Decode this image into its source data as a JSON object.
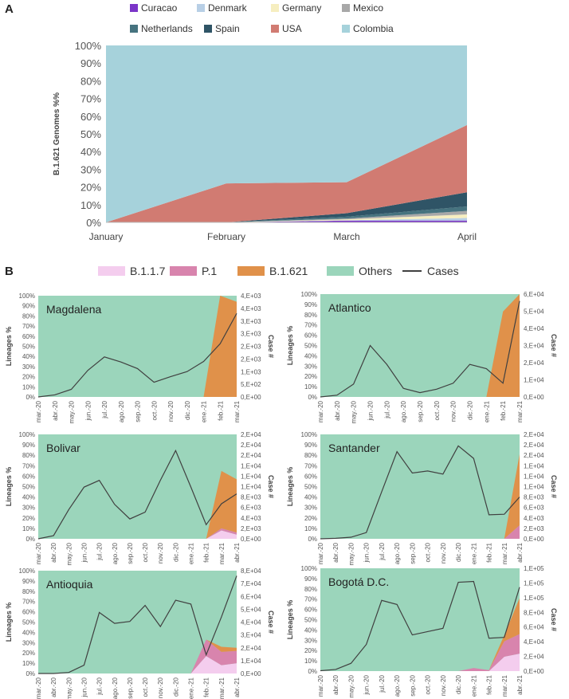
{
  "panel_a": {
    "label": "A",
    "chart_data": {
      "type": "area",
      "title": "",
      "ylabel": "B.1.621 Genomes %%",
      "xlabel": "",
      "categories": [
        "January",
        "February",
        "March",
        "April"
      ],
      "ylim": [
        0,
        100
      ],
      "y_ticks": [
        "0%",
        "10%",
        "20%",
        "30%",
        "40%",
        "50%",
        "60%",
        "70%",
        "80%",
        "90%",
        "100%"
      ],
      "legend_position": "top",
      "series": [
        {
          "name": "Curacao",
          "color": "#7b35c8",
          "values": [
            0,
            0,
            1.0,
            1.0
          ]
        },
        {
          "name": "Denmark",
          "color": "#b8cfe6",
          "values": [
            0,
            0,
            0.2,
            1.5
          ]
        },
        {
          "name": "Germany",
          "color": "#f6eec0",
          "values": [
            0,
            0,
            0.5,
            2.0
          ]
        },
        {
          "name": "Mexico",
          "color": "#a8a8a8",
          "values": [
            0,
            0,
            0.5,
            2.0
          ]
        },
        {
          "name": "Netherlands",
          "color": "#46737f",
          "values": [
            0,
            0,
            1.0,
            2.5
          ]
        },
        {
          "name": "Spain",
          "color": "#2f5466",
          "values": [
            0,
            0,
            2.0,
            8.0
          ]
        },
        {
          "name": "USA",
          "color": "#d17b72",
          "values": [
            0,
            22.0,
            17.5,
            38.0
          ]
        },
        {
          "name": "Colombia",
          "color": "#a6d2db",
          "values": [
            100,
            78.0,
            77.3,
            45.0
          ]
        }
      ]
    }
  },
  "panel_b": {
    "label": "B",
    "legend": [
      {
        "name": "B.1.1.7",
        "color": "#f4cdee",
        "kind": "swatch"
      },
      {
        "name": "P.1",
        "color": "#d884ad",
        "kind": "swatch"
      },
      {
        "name": "B.1.621",
        "color": "#e0914a",
        "kind": "swatch"
      },
      {
        "name": "Others",
        "color": "#9bd5bb",
        "kind": "swatch"
      },
      {
        "name": "Cases",
        "color": "#404040",
        "kind": "line"
      }
    ],
    "y_left_label": "Lineages %",
    "y_right_label": "Case #",
    "pct_ticks": [
      "0%",
      "10%",
      "20%",
      "30%",
      "40%",
      "50%",
      "60%",
      "70%",
      "80%",
      "90%",
      "100%"
    ],
    "charts": [
      {
        "name": "Magdalena",
        "type": "area",
        "x": [
          "mar.-20",
          "abr.-20",
          "may.-20",
          "jun.-20",
          "jul.-20",
          "ago.-20",
          "sep.-20",
          "oct.-20",
          "nov.-20",
          "dic.-20",
          "ene.-21",
          "feb.-21",
          "mar.-21"
        ],
        "B117": [
          0,
          0,
          0,
          0,
          0,
          0,
          0,
          0,
          0,
          0,
          0,
          0,
          0
        ],
        "P1": [
          0,
          0,
          0,
          0,
          0,
          0,
          0,
          0,
          0,
          0,
          0,
          0,
          0
        ],
        "B1621": [
          0,
          0,
          0,
          0,
          0,
          0,
          0,
          0,
          0,
          0,
          0,
          100,
          94
        ],
        "cases": [
          0,
          80,
          300,
          1050,
          1580,
          1380,
          1120,
          580,
          800,
          1000,
          1400,
          2100,
          3300
        ],
        "cases_max": 4000,
        "case_ticks": [
          "0,E+00",
          "5,E+02",
          "1,E+03",
          "2,E+03",
          "2,E+03",
          "3,E+03",
          "3,E+03",
          "4,E+03",
          "4,E+03"
        ]
      },
      {
        "name": "Atlantico",
        "type": "area",
        "x": [
          "mar.-20",
          "abr.-20",
          "may.-20",
          "jun.-20",
          "jul.-20",
          "ago.-20",
          "sep.-20",
          "oct.-20",
          "nov.-20",
          "dic.-20",
          "ene.-21",
          "feb.-21",
          "mar.-21"
        ],
        "B117": [
          0,
          0,
          0,
          0,
          0,
          0,
          0,
          0,
          0,
          0,
          0,
          0,
          0
        ],
        "P1": [
          0,
          0,
          0,
          0,
          0,
          0,
          0,
          0,
          0,
          0,
          0,
          0,
          0
        ],
        "B1621": [
          0,
          0,
          0,
          0,
          0,
          0,
          0,
          0,
          0,
          0,
          0,
          83,
          100
        ],
        "cases": [
          0,
          1000,
          7500,
          30000,
          19000,
          5000,
          2500,
          4500,
          8000,
          19000,
          16500,
          8000,
          56000
        ],
        "cases_max": 60000,
        "case_ticks": [
          "0,E+00",
          "1,E+04",
          "2,E+04",
          "3,E+04",
          "4,E+04",
          "5,E+04",
          "6,E+04"
        ]
      },
      {
        "name": "Bolivar",
        "type": "area",
        "x": [
          "mar.-20",
          "abr.-20",
          "may.-20",
          "jun.-20",
          "jul.-20",
          "ago.-20",
          "sep.-20",
          "oct.-20",
          "nov.-20",
          "dic.-20",
          "ene.-21",
          "feb.-21",
          "mar.-21",
          "abr.-21"
        ],
        "B117": [
          0,
          0,
          0,
          0,
          0,
          0,
          0,
          0,
          0,
          0,
          0,
          0,
          8,
          4
        ],
        "P1": [
          0,
          0,
          0,
          0,
          0,
          0,
          0,
          0,
          0,
          0,
          0,
          0,
          2,
          2
        ],
        "B1621": [
          0,
          0,
          0,
          0,
          0,
          0,
          0,
          0,
          0,
          0,
          0,
          0,
          55,
          51
        ],
        "cases": [
          0,
          600,
          5600,
          9900,
          11200,
          6600,
          3800,
          5100,
          11200,
          16900,
          9900,
          2700,
          6700,
          8600
        ],
        "cases_max": 20000,
        "case_ticks": [
          "0,E+00",
          "2,E+03",
          "4,E+03",
          "6,E+03",
          "8,E+03",
          "1,E+04",
          "1,E+04",
          "1,E+04",
          "2,E+04",
          "2,E+04",
          "2,E+04"
        ]
      },
      {
        "name": "Santander",
        "type": "area",
        "x": [
          "mar.-20",
          "abr.-20",
          "may.-20",
          "jun.-20",
          "jul.-20",
          "ago.-20",
          "sep.-20",
          "oct.-20",
          "nov.-20",
          "dic.-20",
          "ene.-21",
          "feb.-21",
          "mar.-21",
          "abr.-21"
        ],
        "B117": [
          0,
          0,
          0,
          0,
          0,
          0,
          0,
          0,
          0,
          0,
          0,
          0,
          0,
          0
        ],
        "P1": [
          0,
          0,
          0,
          0,
          0,
          0,
          0,
          0,
          0,
          0,
          0,
          0,
          0,
          13
        ],
        "B1621": [
          0,
          0,
          0,
          0,
          0,
          0,
          0,
          0,
          0,
          0,
          0,
          0,
          0,
          68
        ],
        "cases": [
          0,
          100,
          300,
          1200,
          9000,
          16700,
          12600,
          13000,
          12400,
          17800,
          15400,
          4600,
          4700,
          8000
        ],
        "cases_max": 20000,
        "case_ticks": [
          "0,E+00",
          "2,E+03",
          "4,E+03",
          "6,E+03",
          "8,E+03",
          "1,E+04",
          "1,E+04",
          "1,E+04",
          "2,E+04",
          "2,E+04",
          "2,E+04"
        ]
      },
      {
        "name": "Antioquia",
        "type": "area",
        "x": [
          "mar.-20",
          "abr.-20",
          "may.-20",
          "jun.-20",
          "jul.-20",
          "ago.-20",
          "sep.-20",
          "oct.-20",
          "nov.-20",
          "dic.-20",
          "ene.-21",
          "feb.-21",
          "mar.-21",
          "abr.-21"
        ],
        "B117": [
          0,
          0,
          0,
          0,
          0,
          0,
          0,
          0,
          0,
          0,
          0,
          17,
          8,
          10
        ],
        "P1": [
          0,
          0,
          0,
          0,
          0,
          0,
          0,
          0,
          0,
          0,
          0,
          16,
          13,
          12
        ],
        "B1621": [
          0,
          0,
          0,
          0,
          0,
          0,
          0,
          0,
          0,
          0,
          0,
          0,
          5,
          3
        ],
        "cases": [
          0,
          0,
          800,
          6500,
          47500,
          39000,
          40500,
          53000,
          36500,
          57000,
          54000,
          14500,
          44000,
          76000
        ],
        "cases_max": 80000,
        "case_ticks": [
          "0,E+00",
          "1,E+04",
          "2,E+04",
          "3,E+04",
          "4,E+04",
          "5,E+04",
          "6,E+04",
          "7,E+04",
          "8,E+04"
        ]
      },
      {
        "name": "Bogotá D.C.",
        "type": "area",
        "x": [
          "mar.-20",
          "abr.-20",
          "may.-20",
          "jun.-20",
          "jul.-20",
          "ago.-20",
          "sep.-20",
          "oct.-20",
          "nov.-20",
          "dic.-20",
          "ene.-21",
          "feb.-21",
          "mar.-21",
          "abr.-21"
        ],
        "B117": [
          0,
          0,
          0,
          0,
          0,
          0,
          0,
          0,
          0,
          0,
          0,
          0,
          14,
          17
        ],
        "P1": [
          0,
          0,
          0,
          0,
          0,
          0,
          0,
          0,
          0,
          0,
          3,
          1,
          15,
          19
        ],
        "B1621": [
          0,
          0,
          0,
          0,
          0,
          0,
          0,
          0,
          0,
          0,
          0,
          0,
          6,
          35
        ],
        "cases": [
          500,
          2000,
          9500,
          32500,
          86000,
          81000,
          44000,
          48000,
          52000,
          108000,
          109000,
          40000,
          41000,
          102000
        ],
        "cases_max": 125000,
        "case_ticks": [
          "0,E+00",
          "2,E+04",
          "4,E+04",
          "6,E+04",
          "8,E+04",
          "1,E+05",
          "1,E+05",
          "1,E+05"
        ]
      }
    ]
  }
}
